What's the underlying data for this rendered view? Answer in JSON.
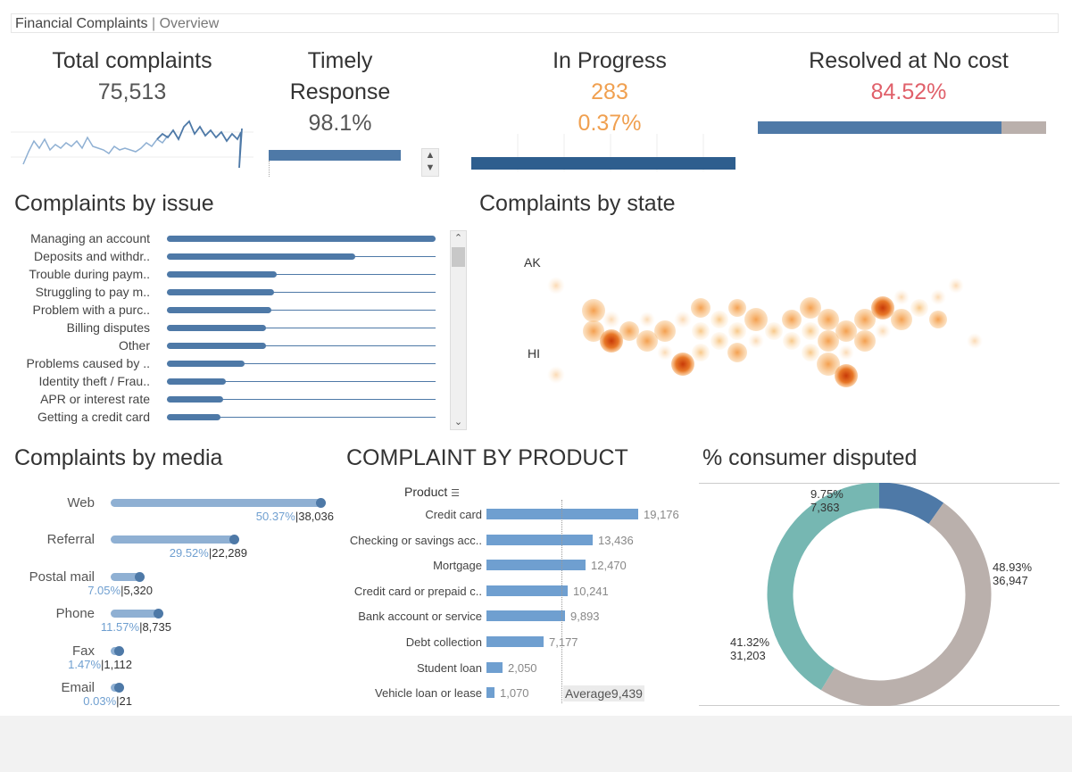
{
  "header": {
    "title": "Financial Complaints",
    "separator": "|",
    "subtitle": "Overview"
  },
  "kpis": {
    "total": {
      "title": "Total complaints",
      "value": "75,513"
    },
    "timely": {
      "title_line1": "Timely",
      "title_line2": "Response",
      "value": "98.1%",
      "fill": 0.981
    },
    "progress": {
      "title": "In Progress",
      "value": "283",
      "pct": "0.37%"
    },
    "resolved": {
      "title": "Resolved at No cost",
      "value": "84.52%",
      "fill": 0.8452
    }
  },
  "colors": {
    "blue": "#4e79a7",
    "dark_blue": "#2e5e8e",
    "light_blue": "#8fb0d3",
    "orange": "#f0a050",
    "red": "#e0606a",
    "grey": "#bab0ac",
    "teal": "#76b7b2"
  },
  "issues": {
    "title": "Complaints by issue",
    "items": [
      {
        "label": "Managing an account",
        "frac": 1.0
      },
      {
        "label": "Deposits and withdr..",
        "frac": 0.7
      },
      {
        "label": "Trouble during paym..",
        "frac": 0.41
      },
      {
        "label": "Struggling to pay m..",
        "frac": 0.4
      },
      {
        "label": "Problem with a purc..",
        "frac": 0.39
      },
      {
        "label": "Billing disputes",
        "frac": 0.37
      },
      {
        "label": "Other",
        "frac": 0.37
      },
      {
        "label": "Problems caused by ..",
        "frac": 0.29
      },
      {
        "label": "Identity theft / Frau..",
        "frac": 0.22
      },
      {
        "label": "APR or interest rate",
        "frac": 0.21
      },
      {
        "label": "Getting a credit card",
        "frac": 0.2
      }
    ]
  },
  "states": {
    "title": "Complaints by state",
    "ak": "AK",
    "hi": "HI"
  },
  "media": {
    "title": "Complaints by media",
    "items": [
      {
        "label": "Web",
        "pct": "50.37%",
        "count": "38,036",
        "frac": 1.0
      },
      {
        "label": "Referral",
        "pct": "29.52%",
        "count": "22,289",
        "frac": 0.59
      },
      {
        "label": "Postal mail",
        "pct": "7.05%",
        "count": "5,320",
        "frac": 0.14
      },
      {
        "label": "Phone",
        "pct": "11.57%",
        "count": "8,735",
        "frac": 0.23
      },
      {
        "label": "Fax",
        "pct": "1.47%",
        "count": "1,112",
        "frac": 0.03
      },
      {
        "label": "Email",
        "pct": "0.03%",
        "count": "21",
        "frac": 0.0
      }
    ]
  },
  "products": {
    "title": "COMPLAINT BY PRODUCT",
    "header": "Product",
    "average_label": "Average",
    "average_value": "9,439",
    "average_num": 9439,
    "max": 19176,
    "items": [
      {
        "label": "Credit card",
        "value": 19176,
        "display": "19,176"
      },
      {
        "label": "Checking or savings acc..",
        "value": 13436,
        "display": "13,436"
      },
      {
        "label": "Mortgage",
        "value": 12470,
        "display": "12,470"
      },
      {
        "label": "Credit card or prepaid c..",
        "value": 10241,
        "display": "10,241"
      },
      {
        "label": "Bank account or service",
        "value": 9893,
        "display": "9,893"
      },
      {
        "label": "Debt collection",
        "value": 7177,
        "display": "7,177"
      },
      {
        "label": "Student loan",
        "value": 2050,
        "display": "2,050"
      },
      {
        "label": "Vehicle loan or lease",
        "value": 1070,
        "display": "1,070"
      }
    ]
  },
  "disputed": {
    "title": "% consumer disputed",
    "segments": [
      {
        "pct": "9.75%",
        "count": "7,363",
        "frac": 0.0975,
        "color": "#4e79a7"
      },
      {
        "pct": "48.93%",
        "count": "36,947",
        "frac": 0.4893,
        "color": "#bab0ac"
      },
      {
        "pct": "41.32%",
        "count": "31,203",
        "frac": 0.4132,
        "color": "#76b7b2"
      }
    ]
  }
}
